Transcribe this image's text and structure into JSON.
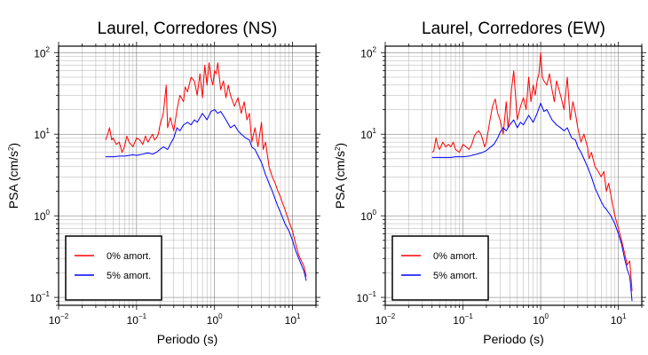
{
  "chart_data": [
    {
      "type": "line",
      "title": "Laurel, Corredores (NS)",
      "xlabel": "Periodo (s)",
      "ylabel_main": "PSA (cm/s",
      "ylabel_sup": "2",
      "ylabel_close": ")",
      "xscale": "log",
      "yscale": "log",
      "xlim": [
        0.01,
        20
      ],
      "ylim": [
        0.08,
        120
      ],
      "grid": true,
      "legend_position": "bottom-left",
      "xticks": [
        {
          "value": 0.01,
          "base": "10",
          "exp": "−2"
        },
        {
          "value": 0.1,
          "base": "10",
          "exp": "−1"
        },
        {
          "value": 1,
          "base": "10",
          "exp": "0"
        },
        {
          "value": 10,
          "base": "10",
          "exp": "1"
        }
      ],
      "yticks": [
        {
          "value": 0.1,
          "base": "10",
          "exp": "−1"
        },
        {
          "value": 1,
          "base": "10",
          "exp": "0"
        },
        {
          "value": 10,
          "base": "10",
          "exp": "1"
        },
        {
          "value": 100,
          "base": "10",
          "exp": "2"
        }
      ],
      "series": [
        {
          "name": "0% amort.",
          "color": "#ff0000",
          "x": [
            0.04,
            0.042,
            0.045,
            0.048,
            0.05,
            0.055,
            0.06,
            0.065,
            0.07,
            0.075,
            0.08,
            0.09,
            0.1,
            0.11,
            0.12,
            0.13,
            0.14,
            0.15,
            0.16,
            0.17,
            0.18,
            0.19,
            0.2,
            0.22,
            0.24,
            0.25,
            0.27,
            0.3,
            0.33,
            0.36,
            0.4,
            0.42,
            0.45,
            0.5,
            0.55,
            0.6,
            0.65,
            0.7,
            0.75,
            0.8,
            0.85,
            0.9,
            0.95,
            1.0,
            1.05,
            1.1,
            1.2,
            1.3,
            1.4,
            1.5,
            1.6,
            1.8,
            2.0,
            2.2,
            2.4,
            2.6,
            2.8,
            3.0,
            3.3,
            3.6,
            4.0,
            4.2,
            4.5,
            5.0,
            5.5,
            6.0,
            6.5,
            7.0,
            7.5,
            8.0,
            9.0,
            10.0,
            11.0,
            12.0,
            13.0,
            14.0,
            15.0
          ],
          "y": [
            8.5,
            9.5,
            12.0,
            8.5,
            9.0,
            7.5,
            8.0,
            6.0,
            7.0,
            9.5,
            8.0,
            7.0,
            9.0,
            8.5,
            7.5,
            9.5,
            8.0,
            9.0,
            10.0,
            8.5,
            9.0,
            10.0,
            13.0,
            18.0,
            40.0,
            12.0,
            16.0,
            11.0,
            20.0,
            30.0,
            25.0,
            38.0,
            33.0,
            50.0,
            45.0,
            30.0,
            55.0,
            28.0,
            70.0,
            40.0,
            75.0,
            50.0,
            40.0,
            60.0,
            55.0,
            75.0,
            35.0,
            45.0,
            28.0,
            40.0,
            30.0,
            22.0,
            28.0,
            18.0,
            25.0,
            15.0,
            18.0,
            8.0,
            12.0,
            7.0,
            14.0,
            6.5,
            8.0,
            4.0,
            3.0,
            2.5,
            2.0,
            1.7,
            1.4,
            1.2,
            0.85,
            0.65,
            0.45,
            0.33,
            0.28,
            0.24,
            0.18
          ]
        },
        {
          "name": "5% amort.",
          "color": "#0000ff",
          "x": [
            0.04,
            0.05,
            0.06,
            0.07,
            0.08,
            0.09,
            0.1,
            0.12,
            0.14,
            0.16,
            0.18,
            0.2,
            0.22,
            0.25,
            0.28,
            0.3,
            0.33,
            0.36,
            0.4,
            0.45,
            0.5,
            0.55,
            0.6,
            0.7,
            0.8,
            0.9,
            1.0,
            1.1,
            1.2,
            1.4,
            1.6,
            1.8,
            2.0,
            2.2,
            2.5,
            2.8,
            3.0,
            3.3,
            3.6,
            4.0,
            4.5,
            5.0,
            5.5,
            6.0,
            6.5,
            7.0,
            8.0,
            9.0,
            10.0,
            11.0,
            12.0,
            13.0,
            14.0,
            15.0
          ],
          "y": [
            5.3,
            5.3,
            5.4,
            5.4,
            5.5,
            5.6,
            5.5,
            5.7,
            5.9,
            5.7,
            6.0,
            6.5,
            7.0,
            6.5,
            8.0,
            9.0,
            12.0,
            11.0,
            13.0,
            14.0,
            13.0,
            15.0,
            14.0,
            18.0,
            15.0,
            19.0,
            20.0,
            18.0,
            19.0,
            15.0,
            12.0,
            13.0,
            11.0,
            10.0,
            9.0,
            8.5,
            7.0,
            6.5,
            5.5,
            4.5,
            3.2,
            2.5,
            2.0,
            1.6,
            1.3,
            1.1,
            0.8,
            0.65,
            0.5,
            0.37,
            0.3,
            0.25,
            0.21,
            0.16
          ]
        }
      ]
    },
    {
      "type": "line",
      "title": "Laurel, Corredores (EW)",
      "xlabel": "Periodo (s)",
      "ylabel_main": "PSA (cm/s",
      "ylabel_sup": "2",
      "ylabel_close": ")",
      "xscale": "log",
      "yscale": "log",
      "xlim": [
        0.01,
        20
      ],
      "ylim": [
        0.08,
        120
      ],
      "grid": true,
      "legend_position": "bottom-left",
      "xticks": [
        {
          "value": 0.01,
          "base": "10",
          "exp": "−2"
        },
        {
          "value": 0.1,
          "base": "10",
          "exp": "−1"
        },
        {
          "value": 1,
          "base": "10",
          "exp": "0"
        },
        {
          "value": 10,
          "base": "10",
          "exp": "1"
        }
      ],
      "yticks": [
        {
          "value": 0.1,
          "base": "10",
          "exp": "−1"
        },
        {
          "value": 1,
          "base": "10",
          "exp": "0"
        },
        {
          "value": 10,
          "base": "10",
          "exp": "1"
        },
        {
          "value": 100,
          "base": "10",
          "exp": "2"
        }
      ],
      "series": [
        {
          "name": "0% amort.",
          "color": "#ff0000",
          "x": [
            0.04,
            0.042,
            0.045,
            0.048,
            0.05,
            0.055,
            0.06,
            0.065,
            0.07,
            0.075,
            0.08,
            0.09,
            0.1,
            0.11,
            0.12,
            0.13,
            0.14,
            0.15,
            0.16,
            0.17,
            0.18,
            0.19,
            0.2,
            0.22,
            0.24,
            0.26,
            0.28,
            0.3,
            0.33,
            0.36,
            0.38,
            0.4,
            0.42,
            0.45,
            0.5,
            0.55,
            0.6,
            0.65,
            0.7,
            0.75,
            0.8,
            0.85,
            0.9,
            0.95,
            1.0,
            1.05,
            1.1,
            1.2,
            1.3,
            1.4,
            1.5,
            1.6,
            1.8,
            2.0,
            2.2,
            2.4,
            2.6,
            2.8,
            3.0,
            3.3,
            3.6,
            4.0,
            4.2,
            4.5,
            5.0,
            5.5,
            6.0,
            6.5,
            7.0,
            7.5,
            8.0,
            9.0,
            10.0,
            11.0,
            12.0,
            13.0,
            14.0,
            15.0
          ],
          "y": [
            6.0,
            6.2,
            9.0,
            7.0,
            6.5,
            8.0,
            7.0,
            7.5,
            7.0,
            8.0,
            6.5,
            6.0,
            7.5,
            7.0,
            6.5,
            7.5,
            9.5,
            10.5,
            11.0,
            10.0,
            8.5,
            7.0,
            8.0,
            14.0,
            22.0,
            27.0,
            18.0,
            15.0,
            10.0,
            25.0,
            12.0,
            17.0,
            35.0,
            60.0,
            15.0,
            22.0,
            28.0,
            20.0,
            50.0,
            25.0,
            40.0,
            30.0,
            45.0,
            55.0,
            100.0,
            50.0,
            45.0,
            40.0,
            55.0,
            35.0,
            25.0,
            45.0,
            30.0,
            20.0,
            50.0,
            15.0,
            25.0,
            18.0,
            12.0,
            8.0,
            10.0,
            7.0,
            5.0,
            6.0,
            4.0,
            3.5,
            3.0,
            3.5,
            2.0,
            2.5,
            1.8,
            1.0,
            0.7,
            0.5,
            0.35,
            0.25,
            0.28,
            0.12
          ]
        },
        {
          "name": "5% amort.",
          "color": "#0000ff",
          "x": [
            0.04,
            0.05,
            0.06,
            0.07,
            0.08,
            0.09,
            0.1,
            0.12,
            0.14,
            0.16,
            0.18,
            0.2,
            0.22,
            0.25,
            0.28,
            0.3,
            0.33,
            0.36,
            0.4,
            0.45,
            0.5,
            0.55,
            0.6,
            0.7,
            0.8,
            0.9,
            1.0,
            1.1,
            1.2,
            1.4,
            1.6,
            1.8,
            2.0,
            2.2,
            2.5,
            2.8,
            3.0,
            3.3,
            3.6,
            4.0,
            4.5,
            5.0,
            5.5,
            6.0,
            6.5,
            7.0,
            8.0,
            9.0,
            10.0,
            11.0,
            12.0,
            13.0,
            14.0,
            15.0
          ],
          "y": [
            5.2,
            5.2,
            5.2,
            5.2,
            5.3,
            5.3,
            5.3,
            5.4,
            5.6,
            5.8,
            6.0,
            6.3,
            6.8,
            7.5,
            9.0,
            10.5,
            12.0,
            11.0,
            13.0,
            15.0,
            12.0,
            14.0,
            13.0,
            17.0,
            14.0,
            18.0,
            24.0,
            19.0,
            20.0,
            15.0,
            13.0,
            12.0,
            11.0,
            12.0,
            9.0,
            8.5,
            7.0,
            6.0,
            5.0,
            4.0,
            3.0,
            2.2,
            1.8,
            1.5,
            1.3,
            1.2,
            1.0,
            0.8,
            0.6,
            0.45,
            0.3,
            0.22,
            0.18,
            0.09
          ]
        }
      ]
    }
  ]
}
